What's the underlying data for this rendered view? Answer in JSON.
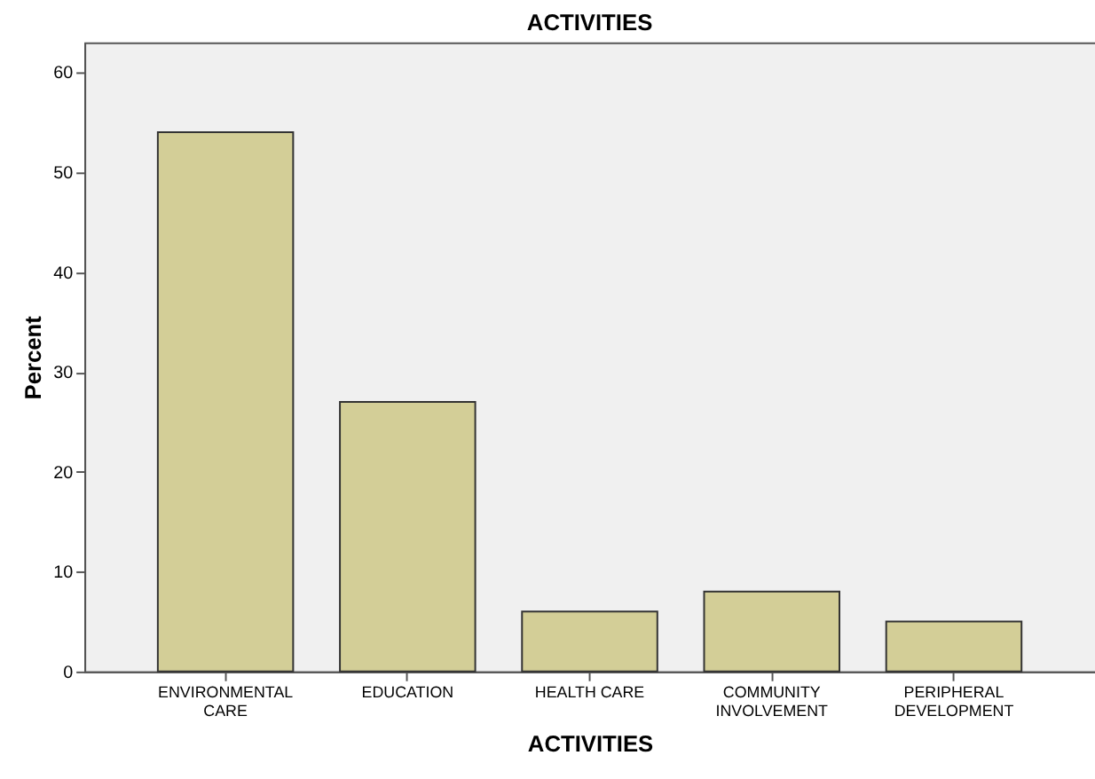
{
  "chart_data": {
    "type": "bar",
    "title": "ACTIVITIES",
    "xlabel": "ACTIVITIES",
    "ylabel": "Percent",
    "categories": [
      "ENVIRONMENTAL CARE",
      "EDUCATION",
      "HEALTH CARE",
      "COMMUNITY INVOLVEMENT",
      "PERIPHERAL DEVELOPMENT"
    ],
    "values": [
      54,
      27,
      6,
      8,
      5
    ],
    "color": "#d3ce97",
    "ylim": [
      0,
      63
    ],
    "yticks": [
      0,
      10,
      20,
      30,
      40,
      50,
      60
    ],
    "grid": false
  }
}
